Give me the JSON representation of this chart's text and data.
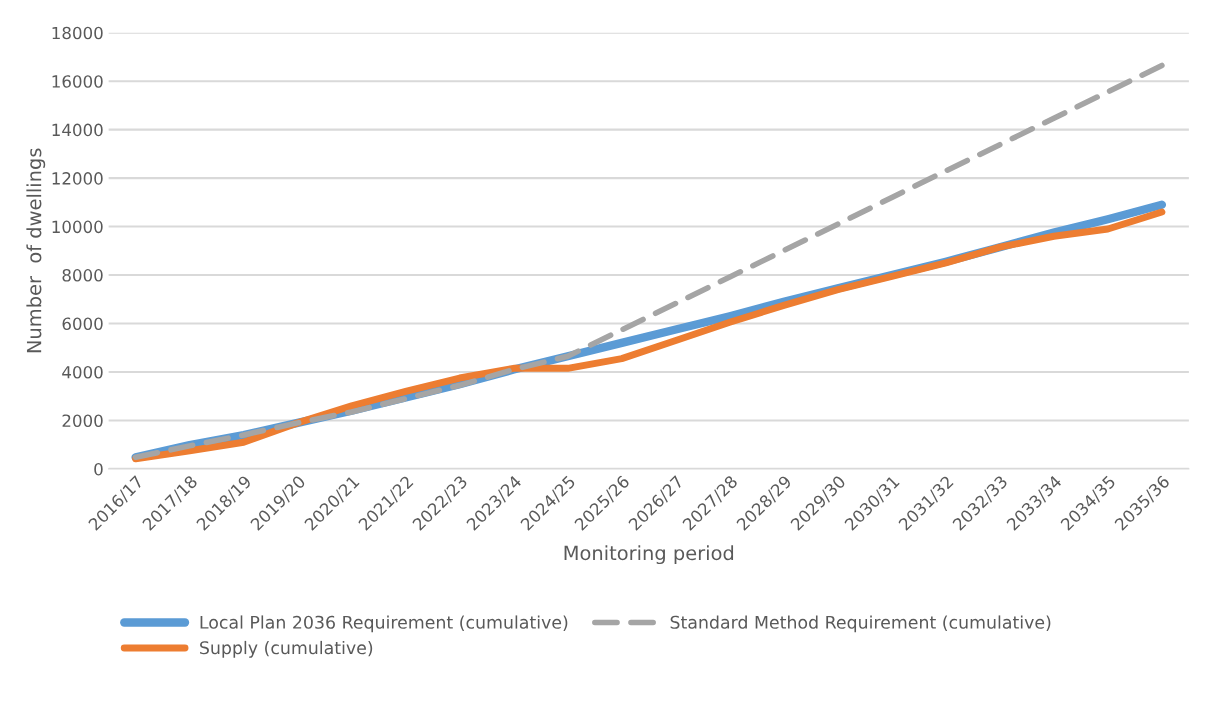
{
  "chart_data": {
    "type": "line",
    "xlabel": "Monitoring period",
    "ylabel": "Number  of dwellings",
    "categories": [
      "2016/17",
      "2017/18",
      "2018/19",
      "2019/20",
      "2020/21",
      "2021/22",
      "2022/23",
      "2023/24",
      "2024/25",
      "2025/26",
      "2026/27",
      "2027/28",
      "2028/29",
      "2029/30",
      "2030/31",
      "2031/32",
      "2032/33",
      "2033/34",
      "2034/35",
      "2035/36"
    ],
    "series": [
      {
        "name": "Local Plan 2036 Requirement (cumulative)",
        "color": "#5b9bd5",
        "line_style": "solid",
        "values": [
          480,
          980,
          1400,
          1900,
          2400,
          2950,
          3500,
          4100,
          4650,
          5200,
          5750,
          6300,
          6900,
          7450,
          8000,
          8550,
          9150,
          9750,
          10300,
          10900
        ]
      },
      {
        "name": "Supply (cumulative)",
        "color": "#ed7d31",
        "line_style": "solid",
        "values": [
          420,
          750,
          1100,
          1900,
          2600,
          3200,
          3750,
          4150,
          4150,
          4550,
          5300,
          6050,
          6750,
          7400,
          7950,
          8500,
          9150,
          9600,
          9900,
          10600
        ]
      },
      {
        "name": "Standard Method Requirement (cumulative)",
        "color": "#a5a5a5",
        "line_style": "dashed",
        "values": [
          480,
          950,
          1400,
          1900,
          2350,
          2900,
          3450,
          4100,
          4650,
          5740,
          6830,
          7920,
          9010,
          10100,
          11200,
          12300,
          13380,
          14470,
          15560,
          16650
        ]
      }
    ],
    "ylim": [
      0,
      18000
    ],
    "yticks": [
      0,
      2000,
      4000,
      6000,
      8000,
      10000,
      12000,
      14000,
      16000,
      18000
    ],
    "grid": "y",
    "legend": "bottom",
    "marker": "none"
  }
}
